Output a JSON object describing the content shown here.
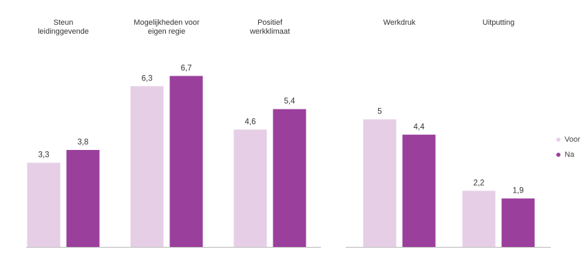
{
  "chart_data": {
    "type": "bar",
    "title": "",
    "xlabel": "",
    "ylabel": "",
    "ylim": [
      0,
      7.5
    ],
    "grid": false,
    "legend_position": "right",
    "groups": [
      {
        "categories": [
          "Steun\nleidinggevende",
          "Mogelijkheden voor\neigen regie",
          "Positief\nwerkklimaat"
        ],
        "series": [
          {
            "name": "Voor",
            "values": [
              3.3,
              6.3,
              4.6
            ],
            "labels": [
              "3,3",
              "6,3",
              "4,6"
            ]
          },
          {
            "name": "Na",
            "values": [
              3.8,
              6.7,
              5.4
            ],
            "labels": [
              "3,8",
              "6,7",
              "5,4"
            ]
          }
        ]
      },
      {
        "categories": [
          "Werkdruk",
          "Uitputting"
        ],
        "series": [
          {
            "name": "Voor",
            "values": [
              5,
              2.2
            ],
            "labels": [
              "5",
              "2,2"
            ]
          },
          {
            "name": "Na",
            "values": [
              4.4,
              1.9
            ],
            "labels": [
              "4,4",
              "1,9"
            ]
          }
        ]
      }
    ],
    "colors": {
      "Voor": "#e6cfe6",
      "Na": "#9a3f9c"
    }
  },
  "legend": {
    "items": [
      {
        "label": "Voor",
        "color": "#e6cfe6"
      },
      {
        "label": "Na",
        "color": "#9a3f9c"
      }
    ]
  }
}
